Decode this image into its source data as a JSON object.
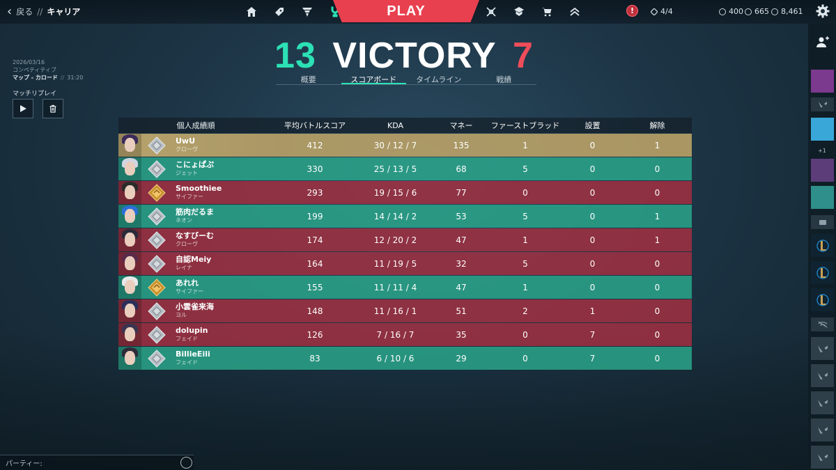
{
  "topbar": {
    "back_label": "戻る",
    "separator": "//",
    "breadcrumb": "キャリア",
    "play_label": "PLAY",
    "alert_label": "!",
    "mission_progress": "4/4",
    "currencies": {
      "vp": "400",
      "radianite": "665",
      "kingdom": "8,461"
    },
    "nav_left_icons": [
      "home-icon",
      "collection-icon",
      "agents-icon",
      "career-icon"
    ],
    "nav_right_icons": [
      "battlepass-icon",
      "esports-icon",
      "store-icon",
      "rank-icon"
    ]
  },
  "match": {
    "score_ally": "13",
    "result": "VICTORY",
    "score_enemy": "7",
    "date": "2026/03/16",
    "mode": "コンペティティブ",
    "map": "マップ - カロード",
    "separator": "//",
    "duration": "31:20",
    "replay_label": "マッチリプレイ"
  },
  "tabs": [
    {
      "label": "概要",
      "active": false
    },
    {
      "label": "スコアボード",
      "active": true
    },
    {
      "label": "タイムライン",
      "active": false
    },
    {
      "label": "戦績",
      "active": false
    }
  ],
  "table": {
    "headers": [
      "個人成績順",
      "平均バトルスコア",
      "KDA",
      "マネー",
      "ファーストブラッド",
      "設置",
      "解除"
    ],
    "rows": [
      {
        "name": "UwU",
        "agent": "クローヴ",
        "team": "self",
        "acs": "412",
        "kda": "30 / 12 / 7",
        "money": "135",
        "fb": "1",
        "plant": "0",
        "defuse": "1"
      },
      {
        "name": "こにょぱぷ",
        "agent": "ジェット",
        "team": "ally",
        "acs": "330",
        "kda": "25 / 13 / 5",
        "money": "68",
        "fb": "5",
        "plant": "0",
        "defuse": "0"
      },
      {
        "name": "Smoothiee",
        "agent": "サイファー",
        "team": "enemy",
        "acs": "293",
        "kda": "19 / 15 / 6",
        "money": "77",
        "fb": "0",
        "plant": "0",
        "defuse": "0"
      },
      {
        "name": "筋肉だるま",
        "agent": "ネオン",
        "team": "ally",
        "acs": "199",
        "kda": "14 / 14 / 2",
        "money": "53",
        "fb": "5",
        "plant": "0",
        "defuse": "1"
      },
      {
        "name": "なすびーむ",
        "agent": "クローヴ",
        "team": "enemy",
        "acs": "174",
        "kda": "12 / 20 / 2",
        "money": "47",
        "fb": "1",
        "plant": "0",
        "defuse": "1"
      },
      {
        "name": "自認Meiy",
        "agent": "レイナ",
        "team": "enemy",
        "acs": "164",
        "kda": "11 / 19 / 5",
        "money": "32",
        "fb": "5",
        "plant": "0",
        "defuse": "0"
      },
      {
        "name": "あれれ",
        "agent": "サイファー",
        "team": "ally",
        "acs": "155",
        "kda": "11 / 11 / 4",
        "money": "47",
        "fb": "1",
        "plant": "0",
        "defuse": "0"
      },
      {
        "name": "小雲雀来海",
        "agent": "ヨル",
        "team": "enemy",
        "acs": "148",
        "kda": "11 / 16 / 1",
        "money": "51",
        "fb": "2",
        "plant": "1",
        "defuse": "0"
      },
      {
        "name": "dolupin",
        "agent": "フェイド",
        "team": "enemy",
        "acs": "126",
        "kda": "7 / 16 / 7",
        "money": "35",
        "fb": "0",
        "plant": "7",
        "defuse": "0"
      },
      {
        "name": "BillieEili",
        "agent": "フェイド",
        "team": "ally",
        "acs": "83",
        "kda": "6 / 10 / 6",
        "money": "29",
        "fb": "0",
        "plant": "7",
        "defuse": "0"
      }
    ]
  },
  "sidebar": {
    "plus_count": "+1"
  },
  "party": {
    "label": "パーティー:"
  },
  "colors": {
    "ally": "#2baa8c",
    "enemy": "#a72f41",
    "self": "#bda468",
    "accent": "#2ce1b5",
    "play": "#e8404f"
  }
}
